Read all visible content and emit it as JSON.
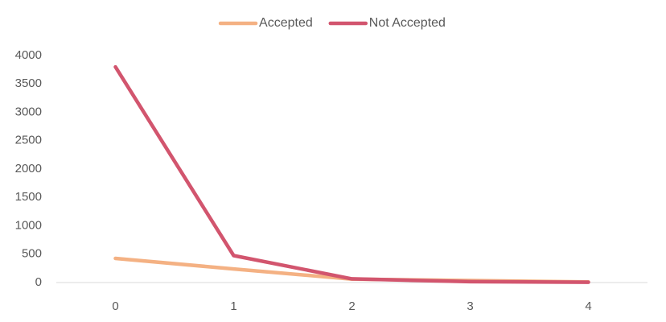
{
  "chart_data": {
    "type": "line",
    "title": "",
    "xlabel": "",
    "ylabel": "",
    "categories": [
      "0",
      "1",
      "2",
      "3",
      "4"
    ],
    "series": [
      {
        "name": "Accepted",
        "color": "#F4B183",
        "values": [
          425,
          240,
          60,
          35,
          10
        ]
      },
      {
        "name": "Not Accepted",
        "color": "#D2556E",
        "values": [
          3800,
          475,
          65,
          15,
          5
        ]
      }
    ],
    "ylim": [
      0,
      4000
    ],
    "yticks": [
      "0",
      "500",
      "1000",
      "1500",
      "2000",
      "2500",
      "3000",
      "3500",
      "4000"
    ],
    "grid": false,
    "legend_position": "top"
  }
}
